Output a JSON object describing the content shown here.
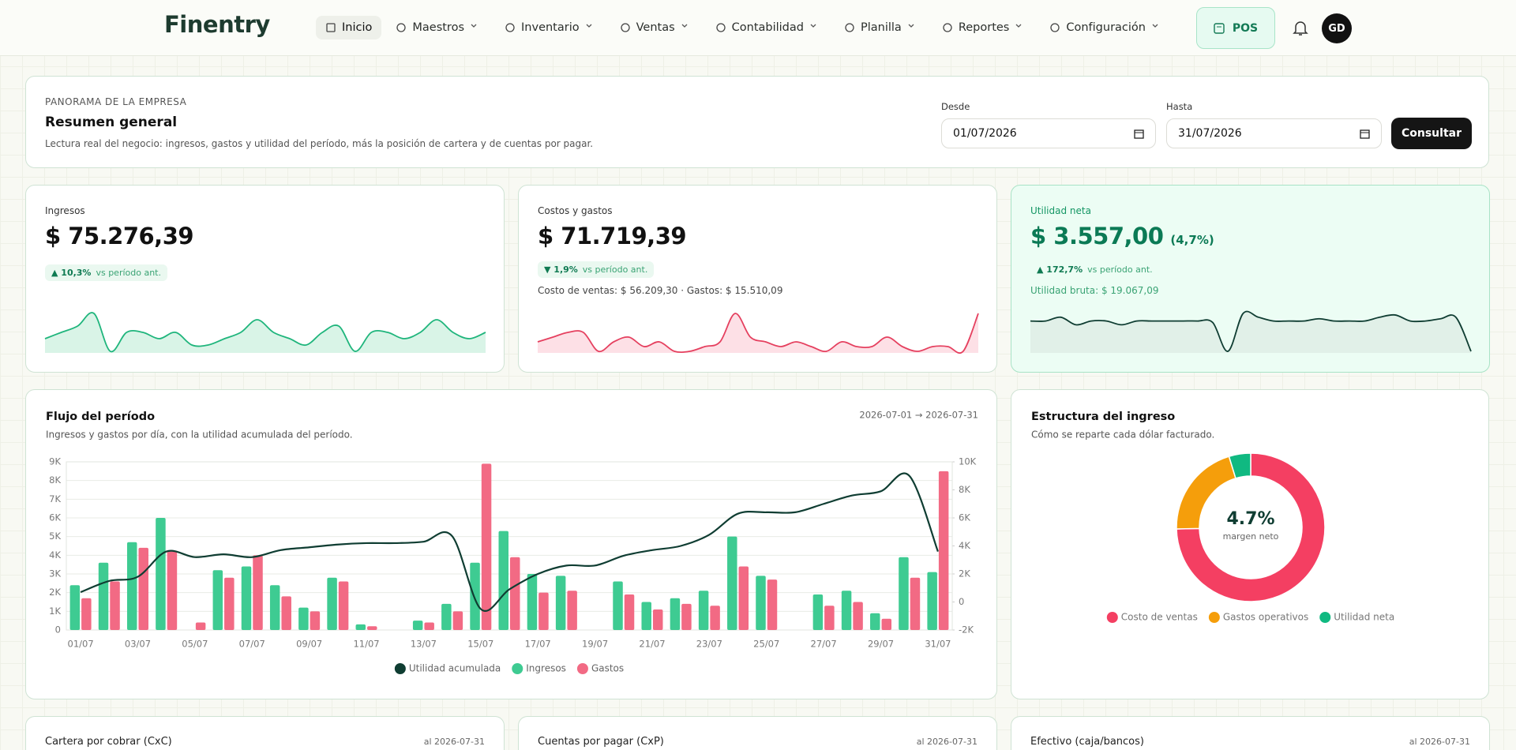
{
  "nav": {
    "brand": "Finentry",
    "items": [
      "Inicio",
      "Maestros",
      "Inventario",
      "Ventas",
      "Contabilidad",
      "Planilla",
      "Reportes",
      "Configuración"
    ],
    "pos": "POS",
    "avatar": "GD"
  },
  "header": {
    "eyebrow": "PANORAMA DE LA EMPRESA",
    "title": "Resumen general",
    "description": "Lectura real del negocio: ingresos, gastos y utilidad del período, más la posición de cartera y de cuentas por pagar.",
    "from_label": "Desde",
    "from": "01/07/2026",
    "to_label": "Hasta",
    "to": "31/07/2026",
    "button": "Consultar"
  },
  "kpis": [
    {
      "label": "Ingresos",
      "value": "$ 75.276,39",
      "change": "▲ 10,3%",
      "change_note": "vs período ant.",
      "spark": [
        3,
        4,
        5,
        7,
        1,
        4,
        4,
        3,
        4,
        2,
        2,
        3,
        4,
        6,
        4,
        3,
        2,
        4,
        5,
        1,
        4,
        4,
        3,
        4,
        6,
        4,
        3,
        4
      ]
    },
    {
      "label": "Costos y gastos",
      "value": "$ 71.719,39",
      "change": "▼ 1,9%",
      "change_note": "vs período ant.",
      "extra": "Costo de ventas: $ 56.209,30 · Gastos: $ 15.510,09",
      "spark": [
        3,
        4,
        5,
        5,
        1,
        3,
        4,
        2,
        3,
        1,
        1,
        2,
        3,
        9,
        4,
        3,
        2,
        3,
        2,
        1,
        3,
        2,
        2,
        4,
        2,
        1,
        2,
        2,
        1,
        9
      ]
    },
    {
      "label": "Utilidad neta",
      "value": "$ 3.557,00",
      "suffix": "(4,7%)",
      "change": "▲ 172,7%",
      "change_note": "vs período ant.",
      "extra": "Utilidad bruta: $ 19.067,09",
      "spark": [
        6,
        6,
        6.5,
        5.5,
        6,
        6,
        5.5,
        6,
        6,
        6,
        6,
        6,
        5.8,
        2,
        7,
        6.5,
        6,
        6,
        6,
        6.3,
        6,
        6,
        6,
        6.5,
        6.8,
        6,
        6,
        6.3,
        6.5,
        2
      ]
    }
  ],
  "chart_data": [
    {
      "type": "bar",
      "title": "Flujo del período",
      "subtitle": "Ingresos y gastos por día, con la utilidad acumulada del período.",
      "range": "2026-07-01 → 2026-07-31",
      "categories": [
        "01/07",
        null,
        "03/07",
        null,
        "05/07",
        null,
        "07/07",
        null,
        "09/07",
        null,
        "11/07",
        null,
        "13/07",
        null,
        "15/07",
        null,
        "17/07",
        null,
        "19/07",
        null,
        "21/07",
        null,
        "23/07",
        null,
        "25/07",
        null,
        "27/07",
        null,
        "29/07",
        null,
        "31/07"
      ],
      "series": [
        {
          "name": "Utilidad acumulada",
          "type": "line",
          "axis": "y2",
          "color": "#0f3d32",
          "values": [
            700,
            1500,
            1800,
            3600,
            3200,
            3400,
            3200,
            3700,
            3900,
            4100,
            4200,
            4200,
            4300,
            4700,
            -500,
            900,
            2000,
            2600,
            2600,
            3300,
            3700,
            4000,
            4800,
            6300,
            6400,
            6400,
            7000,
            7600,
            7900,
            9000,
            3600
          ]
        },
        {
          "name": "Ingresos",
          "type": "bar",
          "color": "#3ecb92",
          "values": [
            2400,
            3600,
            4700,
            6000,
            0,
            3200,
            3400,
            2400,
            1200,
            2800,
            300,
            0,
            500,
            1400,
            3600,
            5300,
            3000,
            2900,
            0,
            2600,
            1500,
            1700,
            2100,
            5000,
            2900,
            0,
            1900,
            2100,
            900,
            3900,
            3100
          ]
        },
        {
          "name": "Gastos",
          "type": "bar",
          "color": "#f26a84",
          "values": [
            1700,
            2600,
            4400,
            4200,
            400,
            2800,
            4000,
            1800,
            1000,
            2600,
            200,
            0,
            400,
            1000,
            8900,
            3900,
            2000,
            2100,
            0,
            1900,
            1100,
            1400,
            1300,
            3400,
            2700,
            0,
            1300,
            1500,
            600,
            2800,
            8500
          ]
        }
      ],
      "ylim": [
        0,
        9000
      ],
      "yticks": [
        0,
        {
          "value": 1000,
          "label": "1K"
        },
        {
          "value": 2000,
          "label": "2K"
        },
        {
          "value": 3000,
          "label": "3K"
        },
        {
          "value": 4000,
          "label": "4K"
        },
        {
          "value": 5000,
          "label": "5K"
        },
        {
          "value": 6000,
          "label": "6K"
        },
        {
          "value": 7000,
          "label": "7K"
        },
        {
          "value": 8000,
          "label": "8K"
        },
        {
          "value": 9000,
          "label": "9K"
        }
      ],
      "y2lim": [
        -2000,
        10000
      ],
      "y2ticks": [
        {
          "value": -2000,
          "label": "-2K"
        },
        0,
        {
          "value": 2000,
          "label": "2K"
        },
        {
          "value": 4000,
          "label": "4K"
        },
        {
          "value": 6000,
          "label": "6K"
        },
        {
          "value": 8000,
          "label": "8K"
        },
        {
          "value": 10000,
          "label": "10K"
        }
      ],
      "grid": true,
      "legend": "bottom"
    },
    {
      "type": "donut",
      "title": "Estructura del ingreso",
      "subtitle": "Cómo se reparte cada dólar facturado.",
      "center_label": "4.7%",
      "center_sublabel": "margen neto",
      "categories": [
        "Costo de ventas",
        "Gastos operativos",
        "Utilidad neta"
      ],
      "values": [
        56209.3,
        15510.09,
        3557.0
      ],
      "colors": [
        "#f43f62",
        "#f59e0b",
        "#10b981"
      ],
      "legend": "bottom"
    }
  ],
  "bottom_cards": [
    {
      "title": "Cartera por cobrar (CxC)",
      "date": "al 2026-07-31"
    },
    {
      "title": "Cuentas por pagar (CxP)",
      "date": "al 2026-07-31"
    },
    {
      "title": "Efectivo (caja/bancos)",
      "date": "al 2026-07-31"
    }
  ]
}
